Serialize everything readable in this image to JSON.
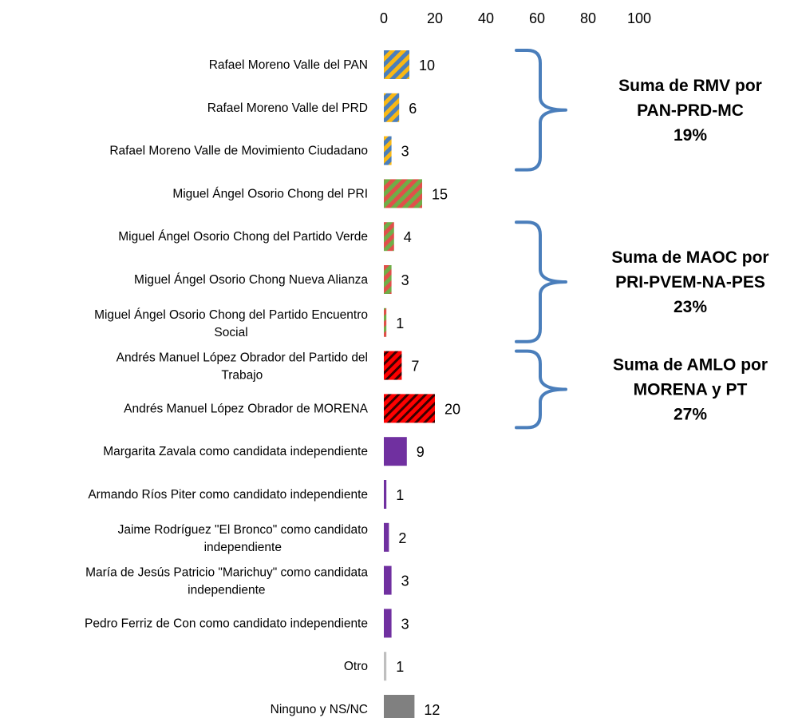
{
  "chart_data": {
    "type": "bar",
    "orientation": "horizontal",
    "xlim": [
      0,
      100
    ],
    "xticks": [
      "0",
      "20",
      "40",
      "60",
      "80",
      "100"
    ],
    "categories": [
      [
        "Rafael Moreno Valle del PAN"
      ],
      [
        "Rafael Moreno Valle del PRD"
      ],
      [
        "Rafael Moreno Valle de Movimiento Ciudadano"
      ],
      [
        "Miguel Ángel Osorio Chong del PRI"
      ],
      [
        "Miguel Ángel Osorio Chong del Partido Verde"
      ],
      [
        "Miguel Ángel Osorio Chong Nueva Alianza"
      ],
      [
        "Miguel Ángel Osorio Chong del Partido Encuentro",
        "Social"
      ],
      [
        "Andrés Manuel López Obrador del Partido del",
        "Trabajo"
      ],
      [
        "Andrés Manuel López Obrador de MORENA"
      ],
      [
        "Margarita Zavala como candidata independiente"
      ],
      [
        "Armando Ríos Piter como candidato independiente"
      ],
      [
        "Jaime Rodríguez \"El Bronco\" como candidato",
        "independiente"
      ],
      [
        "María de Jesús Patricio \"Marichuy\" como candidata",
        "independiente"
      ],
      [
        "Pedro Ferriz de Con como candidato independiente"
      ],
      [
        "Otro"
      ],
      [
        "Ninguno y NS/NC"
      ]
    ],
    "values": [
      10,
      6,
      3,
      15,
      4,
      3,
      1,
      7,
      20,
      9,
      1,
      2,
      3,
      3,
      1,
      12
    ],
    "fills": [
      "rmv",
      "rmv",
      "rmv",
      "maoc",
      "maoc",
      "maoc",
      "maoc",
      "amlo",
      "amlo",
      "ind",
      "ind",
      "ind",
      "ind",
      "ind",
      "otro",
      "ninguno"
    ],
    "colors": {
      "rmv": [
        "#f9b814",
        "#4a7ebb"
      ],
      "maoc": [
        "#70ad47",
        "#e0504a"
      ],
      "amlo": [
        "#ff0000",
        "#3a0000"
      ],
      "ind": "#7030a0",
      "otro": "#bfbfbf",
      "ninguno": "#808080",
      "brace": "#4a7ebb"
    },
    "annotations": [
      {
        "lines": [
          "Suma de RMV por",
          "PAN-PRD-MC",
          "19%"
        ],
        "from": 0,
        "to": 2
      },
      {
        "lines": [
          "Suma de MAOC por",
          "PRI-PVEM-NA-PES",
          "23%"
        ],
        "from": 4,
        "to": 6
      },
      {
        "lines": [
          "Suma de AMLO por",
          "MORENA y PT",
          "27%"
        ],
        "from": 7,
        "to": 8
      }
    ]
  }
}
